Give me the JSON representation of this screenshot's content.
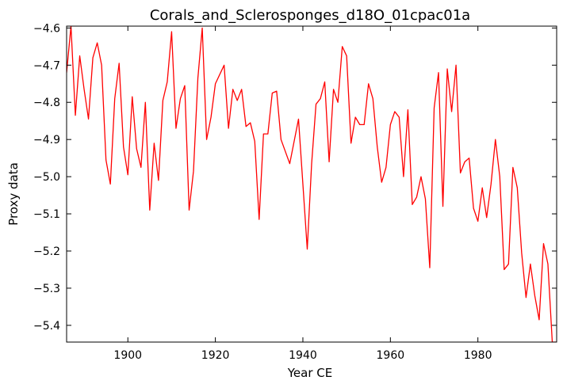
{
  "chart_data": {
    "type": "line",
    "title": "Corals_and_Sclerosponges_d18O_01cpac01a",
    "xlabel": "Year CE",
    "ylabel": "Proxy data",
    "xlim": [
      1886,
      1998
    ],
    "ylim": [
      -5.445,
      -4.595
    ],
    "xticks": [
      1900,
      1920,
      1940,
      1960,
      1980
    ],
    "yticks": [
      -4.6,
      -4.7,
      -4.8,
      -4.9,
      -5.0,
      -5.1,
      -5.2,
      -5.3,
      -5.4
    ],
    "ytick_labels": [
      "−4.6",
      "−4.7",
      "−4.8",
      "−4.9",
      "−5.0",
      "−5.1",
      "−5.2",
      "−5.3",
      "−5.4"
    ],
    "grid": false,
    "series": [
      {
        "color": "#ff0000",
        "x": [
          1886,
          1887,
          1888,
          1889,
          1890,
          1891,
          1892,
          1893,
          1894,
          1895,
          1896,
          1897,
          1898,
          1899,
          1900,
          1901,
          1902,
          1903,
          1904,
          1905,
          1906,
          1907,
          1908,
          1909,
          1910,
          1911,
          1912,
          1913,
          1914,
          1915,
          1916,
          1917,
          1918,
          1919,
          1920,
          1922,
          1923,
          1924,
          1925,
          1926,
          1927,
          1928,
          1929,
          1930,
          1931,
          1932,
          1933,
          1934,
          1935,
          1937,
          1939,
          1941,
          1942,
          1943,
          1944,
          1945,
          1946,
          1947,
          1948,
          1949,
          1950,
          1951,
          1952,
          1953,
          1954,
          1955,
          1956,
          1957,
          1958,
          1959,
          1960,
          1961,
          1962,
          1963,
          1964,
          1965,
          1966,
          1967,
          1968,
          1969,
          1970,
          1971,
          1972,
          1973,
          1974,
          1975,
          1976,
          1977,
          1978,
          1979,
          1980,
          1981,
          1982,
          1983,
          1984,
          1985,
          1986,
          1987,
          1988,
          1989,
          1990,
          1991,
          1992,
          1993,
          1994,
          1995,
          1996,
          1997,
          1998
        ],
        "y": [
          -4.72,
          -4.595,
          -4.835,
          -4.675,
          -4.765,
          -4.845,
          -4.68,
          -4.64,
          -4.7,
          -4.955,
          -5.02,
          -4.79,
          -4.695,
          -4.92,
          -4.995,
          -4.785,
          -4.925,
          -4.975,
          -4.8,
          -5.09,
          -4.91,
          -5.01,
          -4.795,
          -4.745,
          -4.61,
          -4.87,
          -4.79,
          -4.755,
          -5.09,
          -4.985,
          -4.735,
          -4.6,
          -4.9,
          -4.84,
          -4.75,
          -4.7,
          -4.87,
          -4.765,
          -4.795,
          -4.765,
          -4.865,
          -4.855,
          -4.905,
          -5.115,
          -4.885,
          -4.885,
          -4.775,
          -4.77,
          -4.9,
          -4.965,
          -4.845,
          -5.195,
          -4.965,
          -4.805,
          -4.79,
          -4.745,
          -4.96,
          -4.765,
          -4.8,
          -4.65,
          -4.675,
          -4.91,
          -4.84,
          -4.86,
          -4.86,
          -4.75,
          -4.79,
          -4.92,
          -5.015,
          -4.975,
          -4.86,
          -4.825,
          -4.84,
          -5.0,
          -4.82,
          -5.075,
          -5.055,
          -5.0,
          -5.06,
          -5.245,
          -4.815,
          -4.72,
          -5.08,
          -4.71,
          -4.825,
          -4.7,
          -4.99,
          -4.96,
          -4.95,
          -5.085,
          -5.12,
          -5.03,
          -5.11,
          -5.02,
          -4.9,
          -5.0,
          -5.25,
          -5.235,
          -4.975,
          -5.03,
          -5.205,
          -5.325,
          -5.235,
          -5.32,
          -5.385,
          -5.18,
          -5.235,
          -5.445,
          -5.445
        ]
      }
    ]
  }
}
